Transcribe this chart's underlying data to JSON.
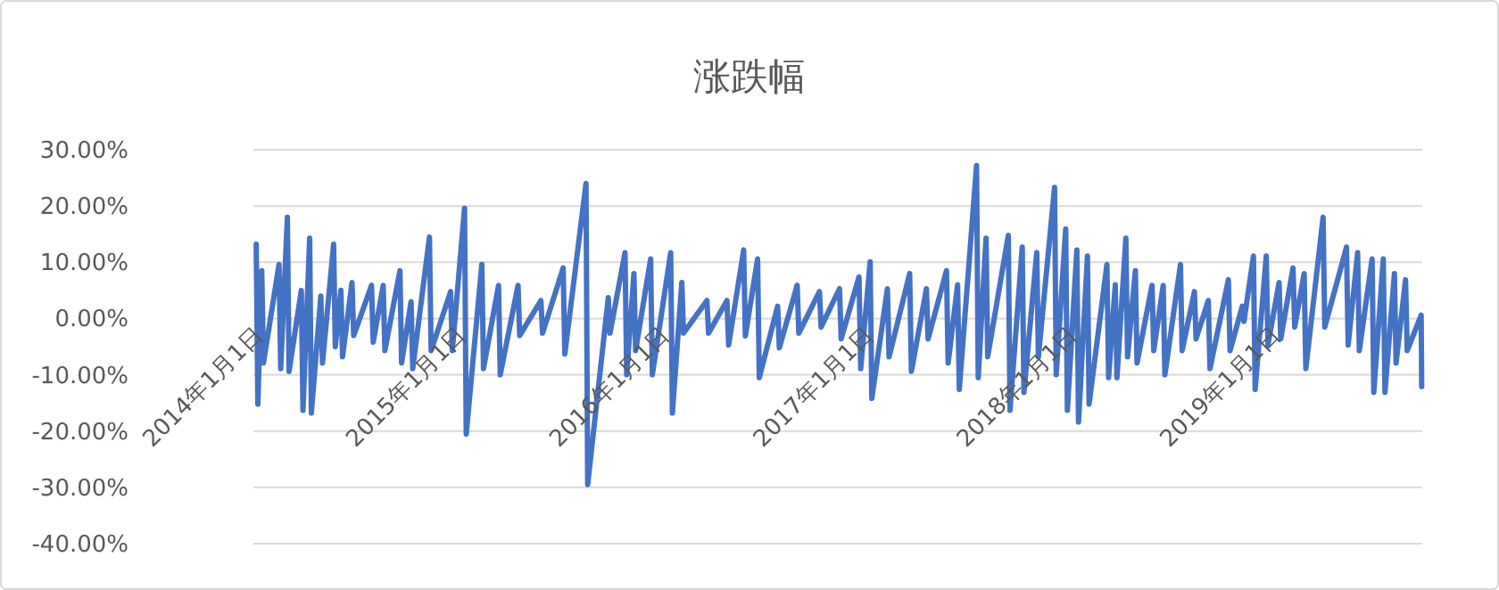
{
  "chart_data": {
    "type": "line",
    "title": "涨跌幅",
    "color": "#4472c4",
    "grid": "y",
    "xlim": [
      "2014-01-01",
      "2019-09-30"
    ],
    "ylim": [
      -40,
      30
    ],
    "xticks": [
      {
        "value": "2014-01-01",
        "label": "2014年1月1日"
      },
      {
        "value": "2015-01-01",
        "label": "2015年1月1日"
      },
      {
        "value": "2016-01-01",
        "label": "2016年1月1日"
      },
      {
        "value": "2017-01-01",
        "label": "2017年1月1日"
      },
      {
        "value": "2018-01-01",
        "label": "2018年1月1日"
      },
      {
        "value": "2019-01-01",
        "label": "2019年1月1日"
      }
    ],
    "yticks": [
      {
        "value": 30,
        "label": "30.00%"
      },
      {
        "value": 20,
        "label": "20.00%"
      },
      {
        "value": 10,
        "label": "10.00%"
      },
      {
        "value": 0,
        "label": "0.00%"
      },
      {
        "value": -10,
        "label": "-10.00%"
      },
      {
        "value": -20,
        "label": "-20.00%"
      },
      {
        "value": -30,
        "label": "-30.00%"
      },
      {
        "value": -40,
        "label": "-40.00%"
      }
    ],
    "x": [
      "2014-01-06",
      "2014-01-09",
      "2014-01-16",
      "2014-01-19",
      "2014-02-16",
      "2014-02-19",
      "2014-03-03",
      "2014-03-06",
      "2014-03-28",
      "2014-03-31",
      "2014-04-12",
      "2014-04-15",
      "2014-05-02",
      "2014-05-05",
      "2014-05-25",
      "2014-05-28",
      "2014-06-07",
      "2014-06-10",
      "2014-06-27",
      "2014-06-30",
      "2014-08-01",
      "2014-08-04",
      "2014-08-22",
      "2014-08-25",
      "2014-09-21",
      "2014-09-24",
      "2014-10-11",
      "2014-10-14",
      "2014-11-13",
      "2014-11-16",
      "2014-12-21",
      "2014-12-24",
      "2015-01-15",
      "2015-01-18",
      "2015-02-15",
      "2015-02-18",
      "2015-03-17",
      "2015-03-20",
      "2015-04-21",
      "2015-04-24",
      "2015-06-01",
      "2015-06-04",
      "2015-07-11",
      "2015-07-14",
      "2015-08-21",
      "2015-08-24",
      "2015-09-30",
      "2015-10-03",
      "2015-10-30",
      "2015-11-02",
      "2015-11-15",
      "2015-11-18",
      "2015-12-15",
      "2015-12-18",
      "2016-01-20",
      "2016-01-23",
      "2016-02-09",
      "2016-02-12",
      "2016-03-25",
      "2016-03-28",
      "2016-04-30",
      "2016-05-03",
      "2016-05-30",
      "2016-06-02",
      "2016-06-24",
      "2016-06-27",
      "2016-07-30",
      "2016-08-02",
      "2016-09-03",
      "2016-09-06",
      "2016-10-13",
      "2016-10-16",
      "2016-11-18",
      "2016-11-21",
      "2016-12-23",
      "2016-12-26",
      "2017-01-12",
      "2017-01-15",
      "2017-02-12",
      "2017-02-15",
      "2017-03-24",
      "2017-03-27",
      "2017-04-23",
      "2017-04-26",
      "2017-05-29",
      "2017-06-01",
      "2017-06-18",
      "2017-06-21",
      "2017-07-22",
      "2017-07-25",
      "2017-08-08",
      "2017-08-11",
      "2017-09-17",
      "2017-09-20",
      "2017-10-12",
      "2017-10-15",
      "2017-11-07",
      "2017-11-10",
      "2017-12-09",
      "2017-12-12",
      "2017-12-29",
      "2018-01-01",
      "2018-01-18",
      "2018-01-21",
      "2018-02-06",
      "2018-02-09",
      "2018-03-13",
      "2018-03-16",
      "2018-03-28",
      "2018-03-31",
      "2018-04-16",
      "2018-04-19",
      "2018-05-03",
      "2018-05-06",
      "2018-06-02",
      "2018-06-05",
      "2018-06-22",
      "2018-06-25",
      "2018-07-23",
      "2018-07-26",
      "2018-08-17",
      "2018-08-20",
      "2018-09-11",
      "2018-09-14",
      "2018-10-17",
      "2018-10-20",
      "2018-11-11",
      "2018-11-14",
      "2018-12-01",
      "2018-12-04",
      "2018-12-24",
      "2018-12-27",
      "2019-01-16",
      "2019-01-19",
      "2019-02-10",
      "2019-02-13",
      "2019-03-02",
      "2019-03-05",
      "2019-04-05",
      "2019-04-08",
      "2019-05-17",
      "2019-05-20",
      "2019-06-06",
      "2019-06-09",
      "2019-07-02",
      "2019-07-05",
      "2019-07-22",
      "2019-07-25",
      "2019-08-11",
      "2019-08-14",
      "2019-08-31",
      "2019-09-03",
      "2019-09-28",
      "2019-09-29"
    ],
    "values": [
      13.2,
      -15.2,
      8.5,
      -7.9,
      9.6,
      -8.9,
      18.0,
      -9.4,
      5.0,
      -16.3,
      14.3,
      -16.8,
      4.0,
      -7.9,
      13.2,
      -5.0,
      5.0,
      -6.8,
      6.4,
      -3.0,
      5.9,
      -4.2,
      5.9,
      -5.7,
      8.5,
      -7.9,
      3.0,
      -8.9,
      14.5,
      -5.7,
      4.8,
      -5.7,
      19.6,
      -20.5,
      9.6,
      -8.9,
      5.9,
      -10.0,
      5.9,
      -3.0,
      3.2,
      -2.6,
      9.0,
      -6.3,
      24.0,
      -29.5,
      3.7,
      -2.6,
      11.7,
      -10.0,
      8.0,
      -5.7,
      10.6,
      -10.0,
      11.7,
      -16.8,
      6.4,
      -2.6,
      3.2,
      -2.6,
      3.2,
      -4.7,
      12.2,
      -3.1,
      10.6,
      -10.5,
      2.2,
      -5.2,
      5.9,
      -2.6,
      4.8,
      -1.5,
      5.3,
      -3.6,
      7.4,
      -8.9,
      10.1,
      -14.2,
      5.3,
      -6.8,
      8.0,
      -9.4,
      5.3,
      -3.6,
      8.5,
      -7.9,
      6.0,
      -12.6,
      27.2,
      -10.5,
      14.3,
      -6.8,
      14.8,
      -16.3,
      12.7,
      -13.1,
      11.7,
      -6.8,
      23.3,
      -10.0,
      15.9,
      -16.3,
      12.2,
      -18.4,
      11.1,
      -15.2,
      9.6,
      -10.5,
      6.0,
      -10.5,
      14.3,
      -6.8,
      8.5,
      -7.9,
      5.9,
      -5.7,
      5.9,
      -10.0,
      9.6,
      -5.7,
      4.8,
      -3.6,
      3.2,
      -8.9,
      6.9,
      -5.7,
      2.2,
      -0.5,
      11.1,
      -12.6,
      11.1,
      -4.7,
      6.4,
      -3.6,
      9.0,
      -1.5,
      8.0,
      -8.9,
      18.0,
      -1.5,
      12.7,
      -4.7,
      11.7,
      -5.7,
      10.6,
      -13.1,
      10.6,
      -13.1,
      8.0,
      -7.9,
      6.9,
      -5.7,
      0.6,
      -12.1
    ]
  }
}
